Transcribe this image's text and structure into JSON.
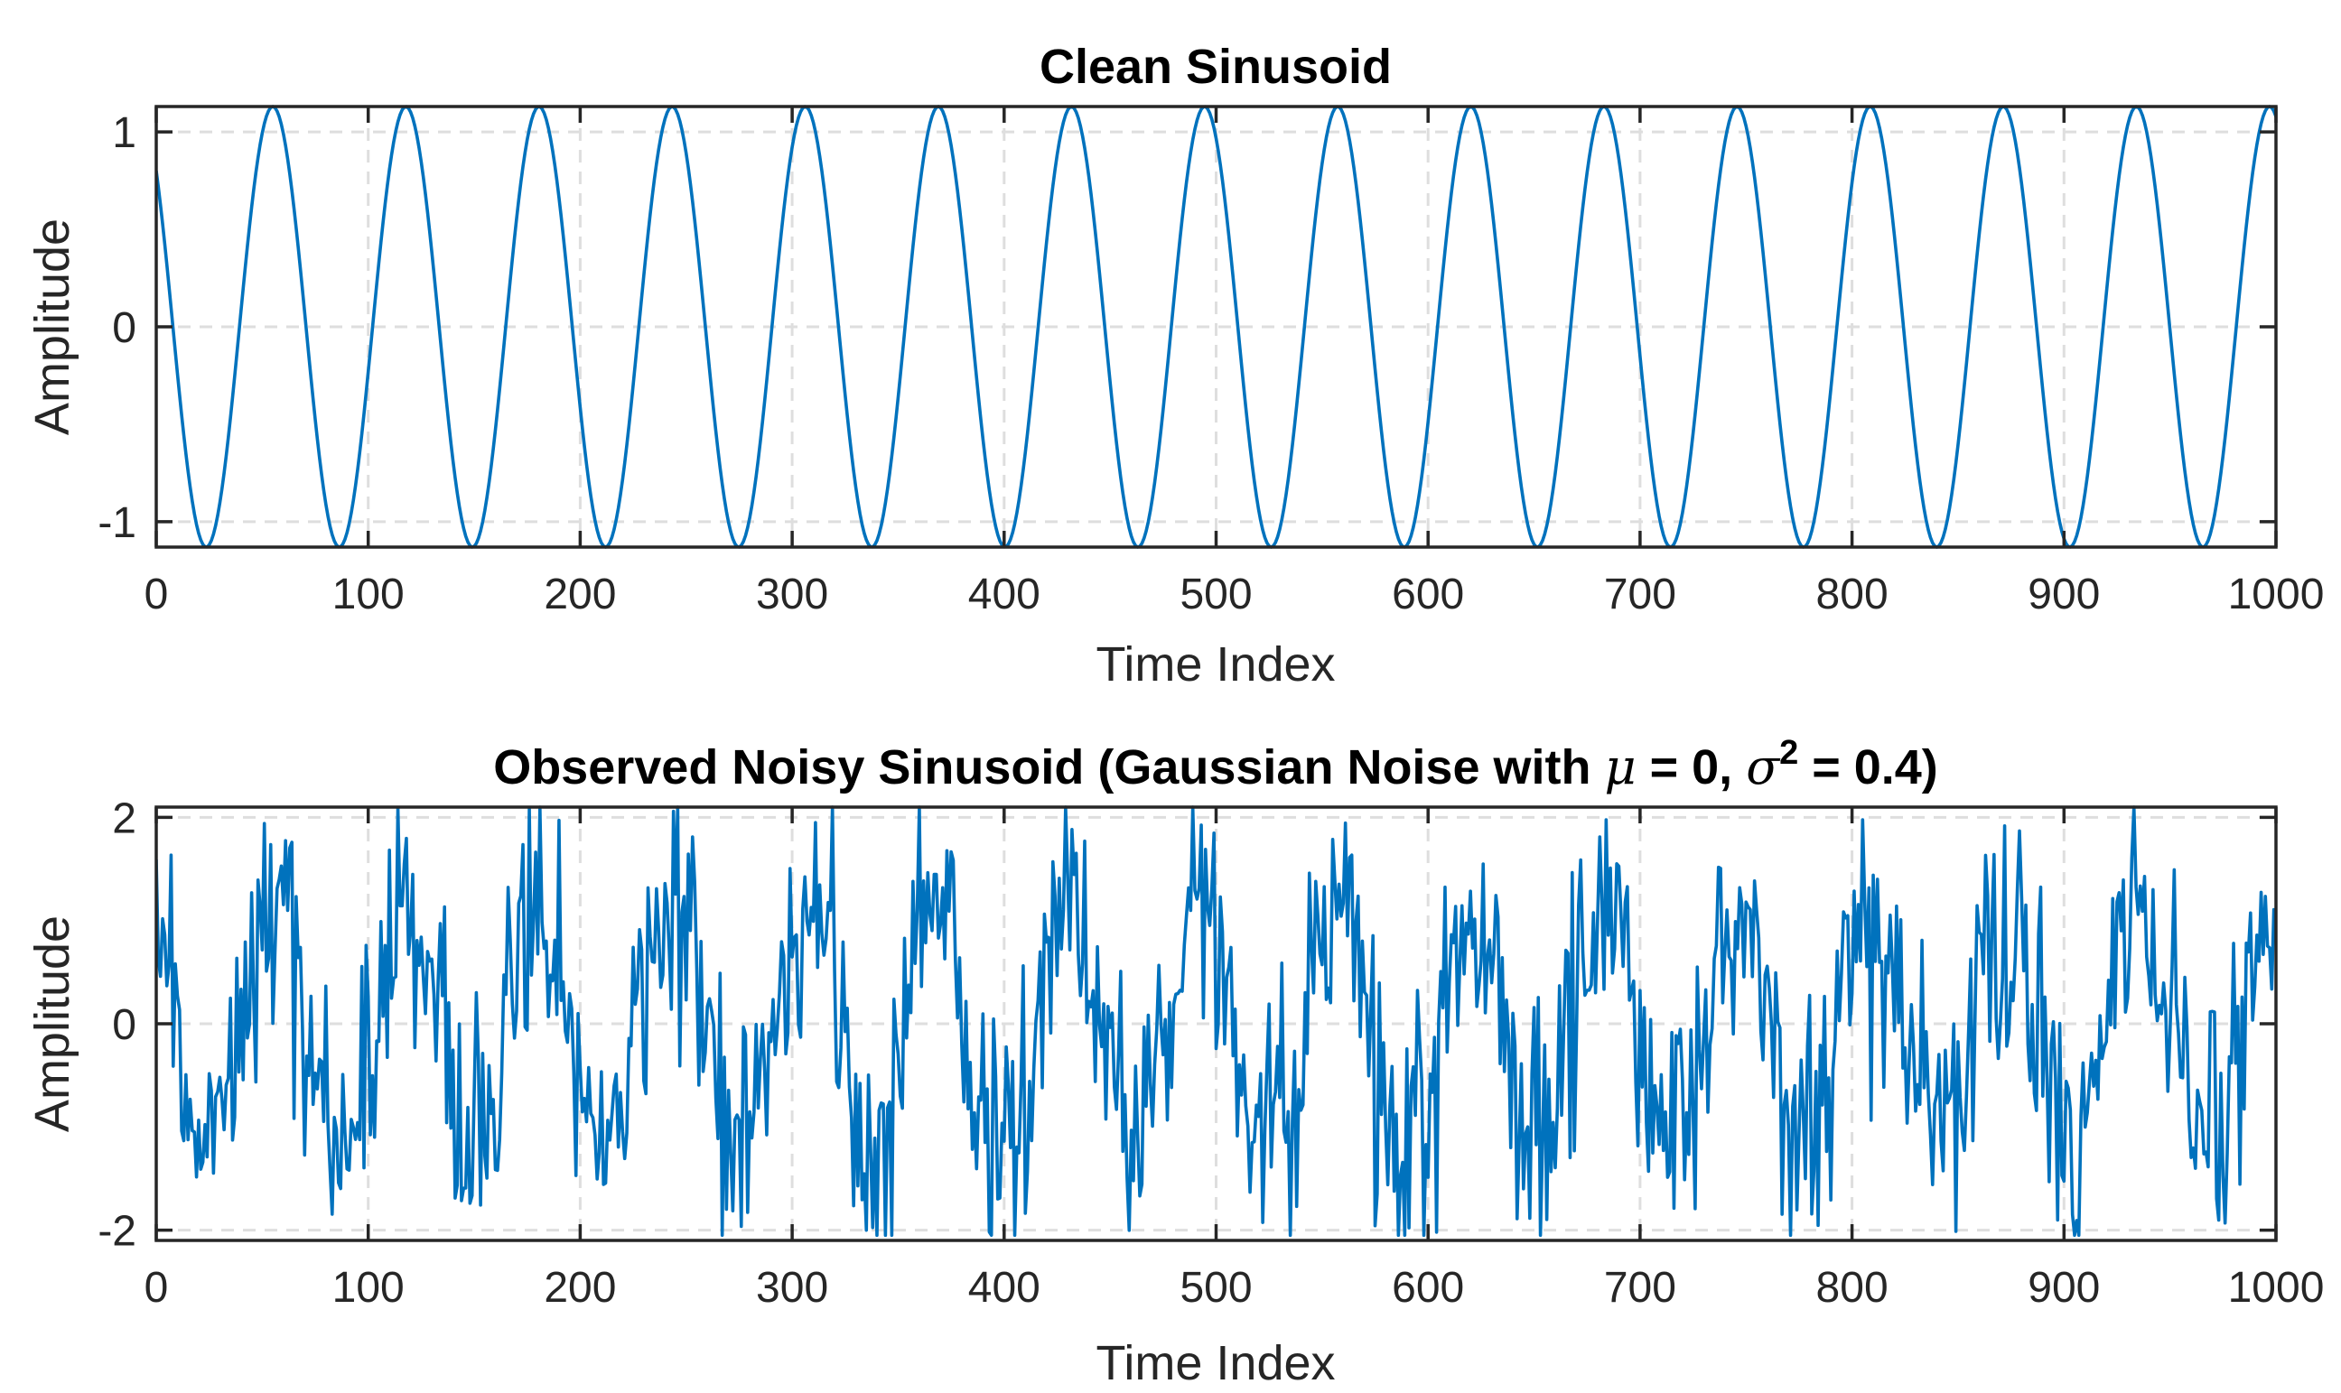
{
  "chart_data": [
    {
      "type": "line",
      "title": "Clean Sinusoid",
      "xlabel": "Time Index",
      "ylabel": "Amplitude",
      "xlim": [
        0,
        1000
      ],
      "ylim": [
        -1.13,
        1.13
      ],
      "xticks": [
        0,
        100,
        200,
        300,
        400,
        500,
        600,
        700,
        800,
        900,
        1000
      ],
      "yticks": [
        -1,
        0,
        1
      ],
      "ytick_labels": [
        "-1",
        "0",
        "1"
      ],
      "grid": true,
      "series_color": "#0072bd",
      "signal": {
        "amplitude": 1.13,
        "period": 62.8,
        "phase_value_at_zero": 0.8,
        "initial_direction": "decreasing",
        "points": 1000
      }
    },
    {
      "type": "line",
      "title_main": "Observed Noisy Sinusoid (Gaussian Noise with ",
      "title_mu": "μ",
      "title_mid": " = 0, ",
      "title_sigma": "σ",
      "title_sup": "2",
      "title_end": " = 0.4)",
      "xlabel": "Time Index",
      "ylabel": "Amplitude",
      "xlim": [
        0,
        1000
      ],
      "ylim": [
        -2.1,
        2.1
      ],
      "xticks": [
        0,
        100,
        200,
        300,
        400,
        500,
        600,
        700,
        800,
        900,
        1000
      ],
      "yticks": [
        -2,
        0,
        2
      ],
      "ytick_labels": [
        "-2",
        "0",
        "2"
      ],
      "grid": true,
      "series_color": "#0072bd",
      "signal": {
        "amplitude": 1.13,
        "period": 62.8,
        "phase_value_at_zero": 0.8,
        "noise_variance": 0.4,
        "noise_mean": 0,
        "points": 1000,
        "observed_min": -2.05,
        "observed_max": 2.1
      }
    }
  ]
}
